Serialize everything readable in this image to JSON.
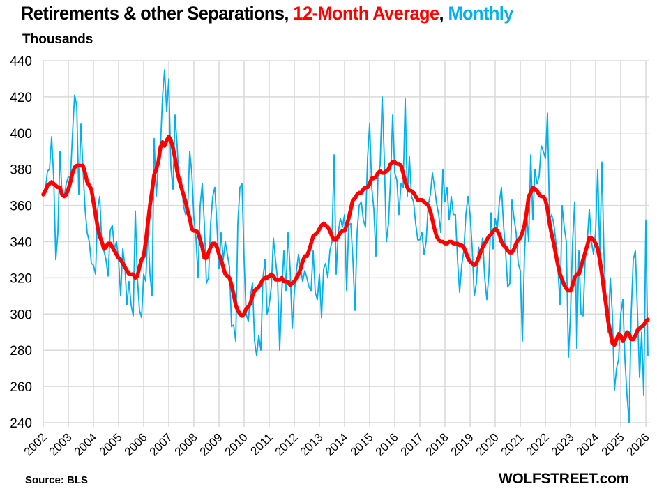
{
  "chart_data": {
    "type": "line",
    "title_parts": [
      {
        "text": "Retirements & other Separations, ",
        "color": "#000000"
      },
      {
        "text": "12-Month Average",
        "color": "#ff0000"
      },
      {
        "text": ", ",
        "color": "#000000"
      },
      {
        "text": "Monthly",
        "color": "#00b0f0"
      }
    ],
    "ylabel": "Thousands",
    "source": "Source: BLS",
    "brand": "WOLFSTREET.com",
    "ylim": [
      240,
      440
    ],
    "yticks": [
      240,
      260,
      280,
      300,
      320,
      340,
      360,
      380,
      400,
      420,
      440
    ],
    "xlim": [
      2002,
      2026.2
    ],
    "xticks": [
      "2002",
      "2003",
      "2004",
      "2005",
      "2006",
      "2007",
      "2008",
      "2009",
      "2010",
      "2011",
      "2012",
      "2013",
      "2014",
      "2015",
      "2016",
      "2017",
      "2018",
      "2019",
      "2020",
      "2021",
      "2022",
      "2023",
      "2024",
      "2025",
      "2026"
    ],
    "grid": true,
    "start": "2002-01",
    "series": [
      {
        "name": "Monthly",
        "color": "#00b0f0",
        "values": [
          366,
          368,
          379,
          380,
          398,
          375,
          330,
          345,
          390,
          365,
          365,
          372,
          376,
          375,
          400,
          421,
          415,
          366,
          405,
          380,
          358,
          345,
          340,
          328,
          327,
          322,
          358,
          365,
          338,
          335,
          330,
          321,
          346,
          349,
          336,
          340,
          330,
          310,
          336,
          327,
          305,
          318,
          305,
          299,
          357,
          320,
          302,
          298,
          322,
          318,
          348,
          322,
          310,
          397,
          365,
          383,
          392,
          420,
          435,
          412,
          430,
          381,
          369,
          410,
          393,
          370,
          375,
          360,
          355,
          357,
          390,
          378,
          353,
          342,
          320,
          360,
          372,
          350,
          317,
          320,
          350,
          365,
          370,
          349,
          325,
          345,
          330,
          340,
          333,
          326,
          293,
          294,
          285,
          350,
          370,
          372,
          330,
          300,
          296,
          310,
          317,
          285,
          277,
          288,
          280,
          320,
          330,
          300,
          305,
          315,
          342,
          330,
          319,
          280,
          312,
          335,
          313,
          345,
          325,
          292,
          312,
          324,
          333,
          325,
          318,
          324,
          320,
          315,
          313,
          335,
          312,
          308,
          322,
          298,
          325,
          328,
          320,
          335,
          340,
          388,
          322,
          345,
          353,
          348,
          355,
          313,
          349,
          350,
          330,
          302,
          345,
          360,
          362,
          352,
          348,
          386,
          405,
          370,
          358,
          332,
          377,
          382,
          420,
          386,
          340,
          350,
          375,
          410,
          378,
          374,
          355,
          372,
          370,
          419,
          365,
          387,
          365,
          362,
          350,
          341,
          341,
          345,
          333,
          340,
          360,
          366,
          378,
          370,
          361,
          355,
          345,
          380,
          362,
          370,
          352,
          365,
          355,
          355,
          330,
          312,
          327,
          335,
          355,
          365,
          355,
          337,
          310,
          317,
          337,
          333,
          342,
          320,
          308,
          322,
          356,
          336,
          353,
          347,
          362,
          370,
          349,
          334,
          315,
          317,
          363,
          353,
          345,
          328,
          324,
          285,
          333,
          356,
          340,
          388,
          352,
          380,
          372,
          376,
          393,
          390,
          386,
          411,
          352,
          355,
          350,
          340,
          325,
          305,
          360,
          348,
          340,
          276,
          300,
          340,
          362,
          281,
          335,
          300,
          299,
          330,
          340,
          358,
          340,
          333,
          346,
          380,
          333,
          384,
          333,
          305,
          290,
          320,
          300,
          258,
          270,
          275,
          300,
          308,
          275,
          255,
          240,
          300,
          330,
          335,
          301,
          265,
          290,
          255,
          352,
          277
        ]
      },
      {
        "name": "12-Month Average",
        "color": "#ff0000",
        "values": [
          366,
          368,
          371,
          372,
          373,
          372,
          371,
          370,
          370,
          366,
          365,
          366,
          369,
          373,
          378,
          381,
          382,
          382,
          382,
          382,
          378,
          373,
          371,
          369,
          362,
          355,
          348,
          343,
          340,
          336,
          337,
          339,
          339,
          337,
          335,
          333,
          331,
          330,
          328,
          326,
          324,
          322,
          322,
          322,
          320,
          321,
          326,
          330,
          332,
          340,
          350,
          360,
          368,
          377,
          380,
          384,
          392,
          395,
          393,
          396,
          398,
          396,
          392,
          386,
          379,
          374,
          370,
          366,
          362,
          357,
          353,
          347,
          346,
          346,
          345,
          341,
          337,
          331,
          331,
          334,
          337,
          339,
          339,
          337,
          333,
          330,
          326,
          322,
          321,
          320,
          316,
          311,
          305,
          302,
          300,
          299,
          300,
          303,
          304,
          306,
          310,
          313,
          314,
          315,
          317,
          319,
          320,
          320,
          321,
          322,
          321,
          319,
          319,
          319,
          320,
          318,
          318,
          318,
          316,
          317,
          318,
          320,
          322,
          325,
          329,
          332,
          332,
          335,
          339,
          343,
          344,
          345,
          347,
          349,
          350,
          349,
          348,
          346,
          343,
          341,
          341,
          343,
          345,
          346,
          346,
          349,
          353,
          358,
          363,
          364,
          366,
          367,
          367,
          369,
          370,
          370,
          372,
          375,
          375,
          376,
          378,
          379,
          378,
          378,
          379,
          380,
          383,
          384,
          384,
          383,
          383,
          382,
          378,
          373,
          370,
          368,
          368,
          367,
          365,
          363,
          363,
          363,
          362,
          361,
          360,
          357,
          352,
          347,
          343,
          341,
          340,
          340,
          339,
          339,
          340,
          340,
          339,
          339,
          339,
          338,
          338,
          337,
          334,
          331,
          329,
          328,
          327,
          328,
          331,
          334,
          337,
          339,
          341,
          343,
          344,
          346,
          347,
          346,
          344,
          340,
          338,
          337,
          335,
          334,
          334,
          336,
          339,
          341,
          342,
          345,
          349,
          356,
          365,
          367,
          370,
          369,
          368,
          366,
          365,
          365,
          363,
          358,
          350,
          344,
          339,
          333,
          327,
          322,
          319,
          316,
          314,
          313,
          313,
          316,
          320,
          322,
          322,
          326,
          330,
          334,
          338,
          342,
          342,
          341,
          339,
          336,
          330,
          322,
          313,
          305,
          296,
          290,
          284,
          283,
          286,
          289,
          288,
          285,
          287,
          290,
          289,
          286,
          286,
          288,
          291,
          292,
          293,
          294,
          296,
          297
        ]
      }
    ]
  }
}
